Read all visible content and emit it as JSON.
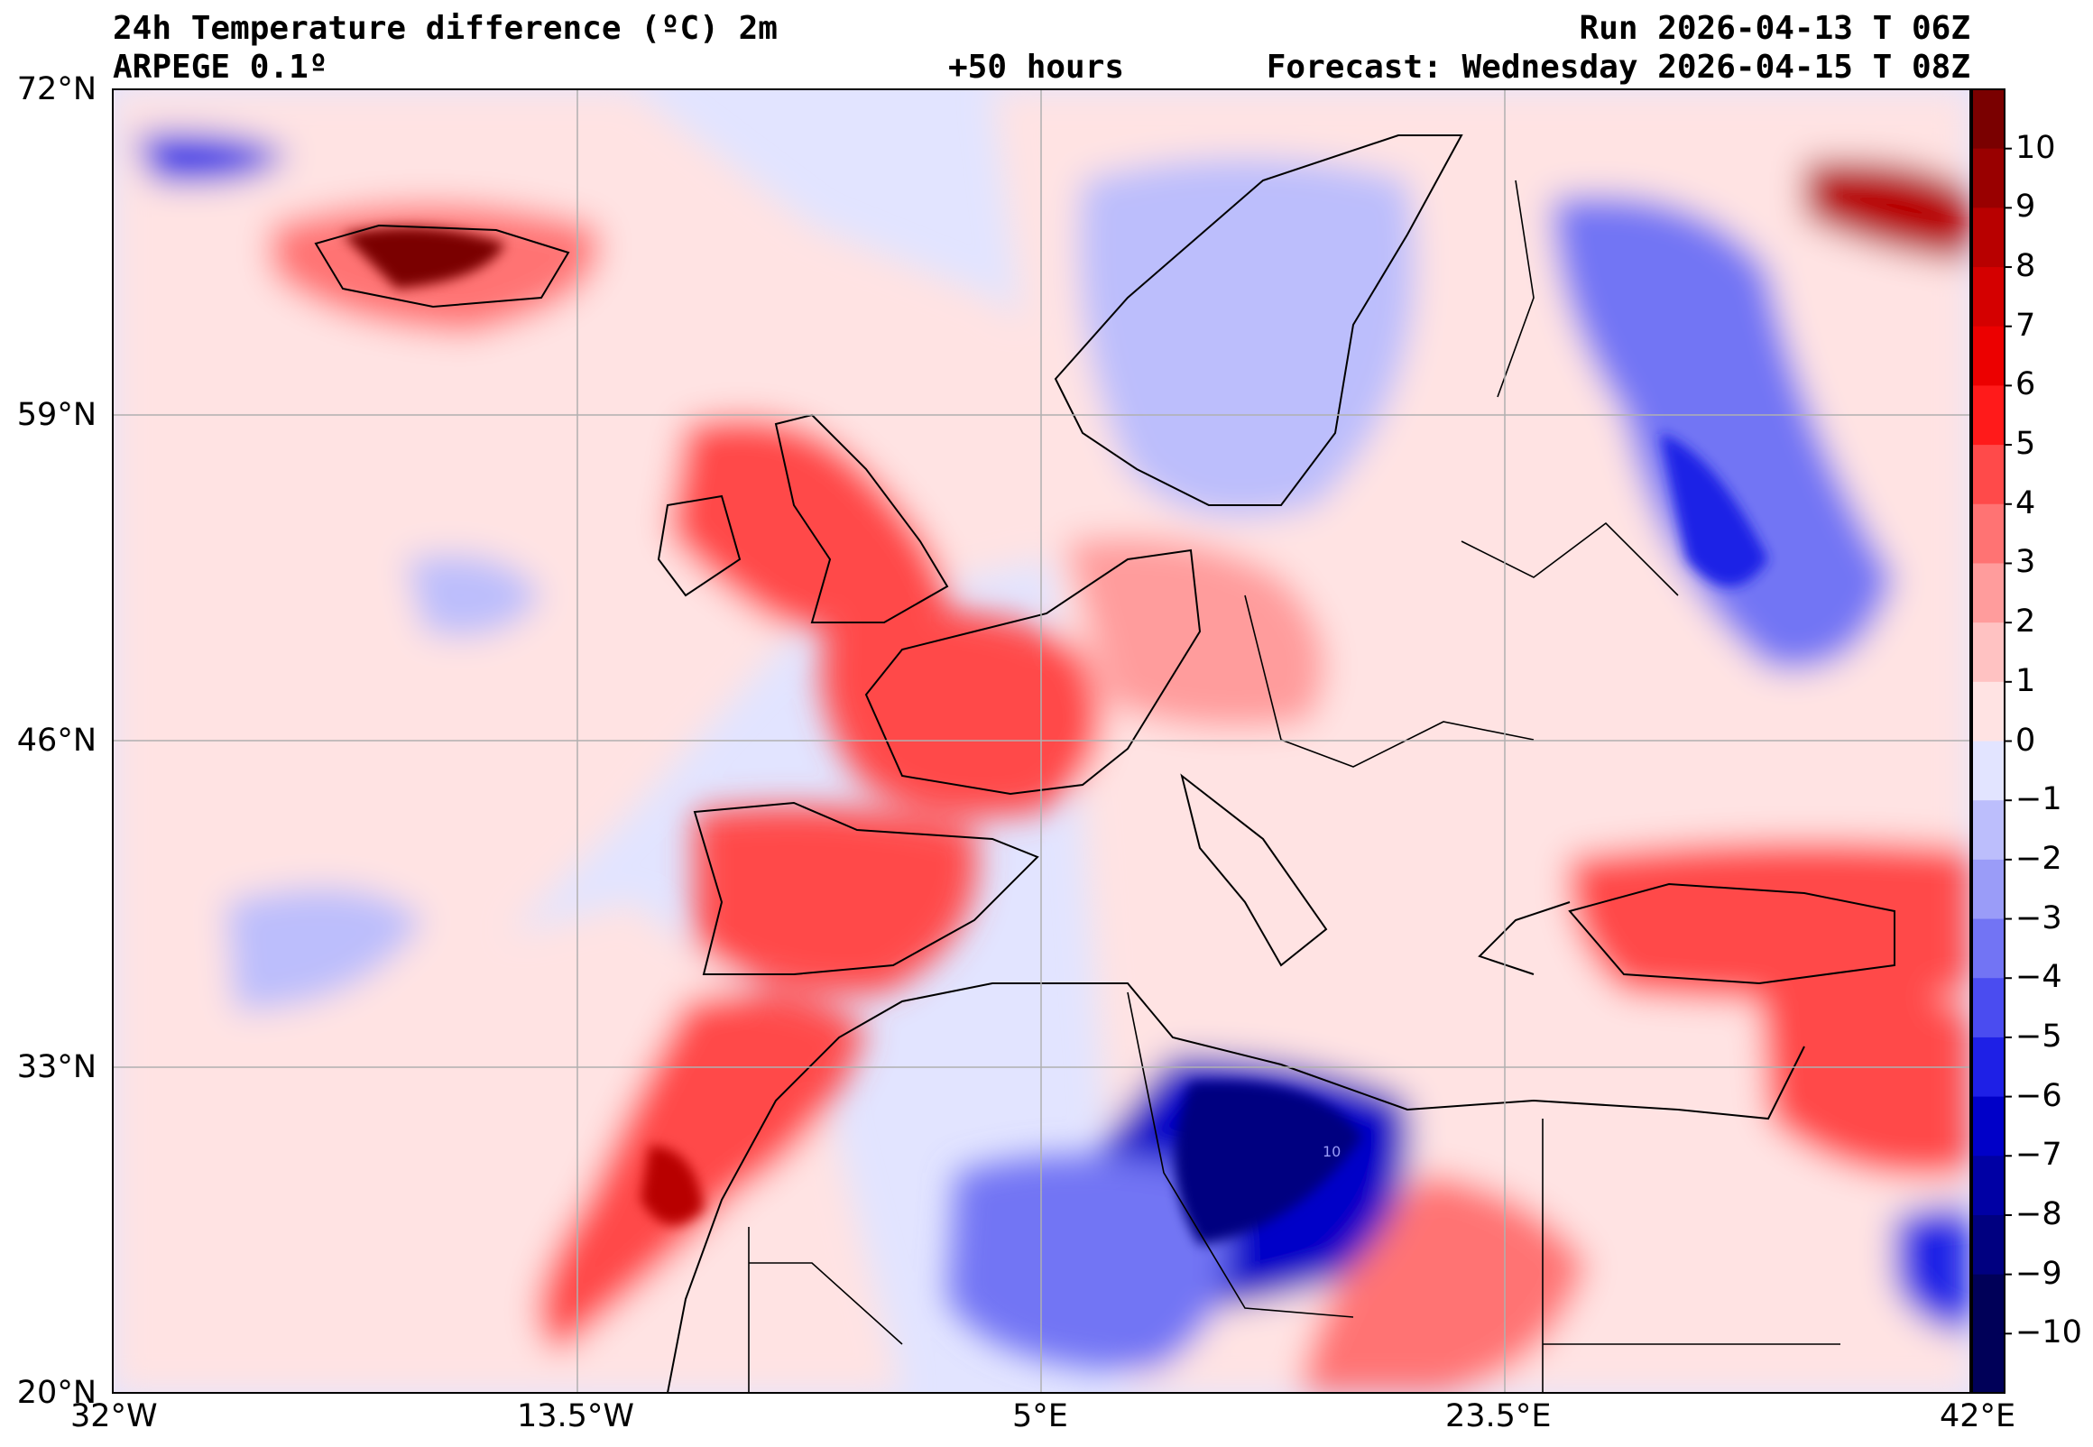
{
  "header": {
    "title": "24h Temperature difference (ºC) 2m",
    "model": "ARPEGE 0.1º",
    "lead": "+50 hours",
    "run": "Run 2026-04-13 T 06Z",
    "forecast": "Forecast: Wednesday 2026-04-15 T 08Z"
  },
  "map_data": {
    "type": "filled-contour-map",
    "variable": "24h Temperature difference 2m",
    "units": "ºC",
    "extent": {
      "lon_min": -32,
      "lon_max": 42,
      "lat_min": 20,
      "lat_max": 72
    },
    "lat_ticks": [
      "72°N",
      "59°N",
      "46°N",
      "33°N",
      "20°N"
    ],
    "lon_ticks": [
      "32°W",
      "13.5°W",
      "5°E",
      "23.5°E",
      "42°E"
    ],
    "colorbar": {
      "levels": [
        10,
        9,
        8,
        7,
        6,
        5,
        4,
        3,
        2,
        1,
        0,
        -1,
        -2,
        -3,
        -4,
        -5,
        -6,
        -7,
        -8,
        -9,
        -10
      ],
      "labels": [
        "10",
        "9",
        "8",
        "7",
        "6",
        "5",
        "4",
        "3",
        "2",
        "1",
        "0",
        "−1",
        "−2",
        "−3",
        "−4",
        "−5",
        "−6",
        "−7",
        "−8",
        "−9",
        "−10"
      ],
      "colors": [
        "#7a0000",
        "#990000",
        "#b80000",
        "#d40000",
        "#ec0000",
        "#ff1a1a",
        "#ff4a4a",
        "#ff7373",
        "#ff9c9c",
        "#ffc2c2",
        "#ffe3e3",
        "#e2e4ff",
        "#bcbefc",
        "#9a9cf8",
        "#7274f4",
        "#4a4cf0",
        "#1e20e6",
        "#0000c8",
        "#0000a4",
        "#000080",
        "#000058"
      ]
    },
    "regions": [
      {
        "name": "iceland",
        "sign": "warm",
        "intensity": 8
      },
      {
        "name": "british-isles",
        "sign": "warm",
        "intensity": 4
      },
      {
        "name": "france",
        "sign": "warm",
        "intensity": 4
      },
      {
        "name": "iberia",
        "sign": "warm",
        "intensity": 4
      },
      {
        "name": "morocco",
        "sign": "warm",
        "intensity": 5
      },
      {
        "name": "turkey",
        "sign": "warm",
        "intensity": 4
      },
      {
        "name": "arctic-russia",
        "sign": "warm",
        "intensity": 7
      },
      {
        "name": "scandinavia",
        "sign": "cold",
        "intensity": 3
      },
      {
        "name": "western-russia",
        "sign": "cold",
        "intensity": 5
      },
      {
        "name": "libya-algeria",
        "sign": "cold",
        "intensity": 9
      },
      {
        "name": "red-sea-arabia",
        "sign": "cold",
        "intensity": 7
      }
    ],
    "contour_label": "10"
  }
}
